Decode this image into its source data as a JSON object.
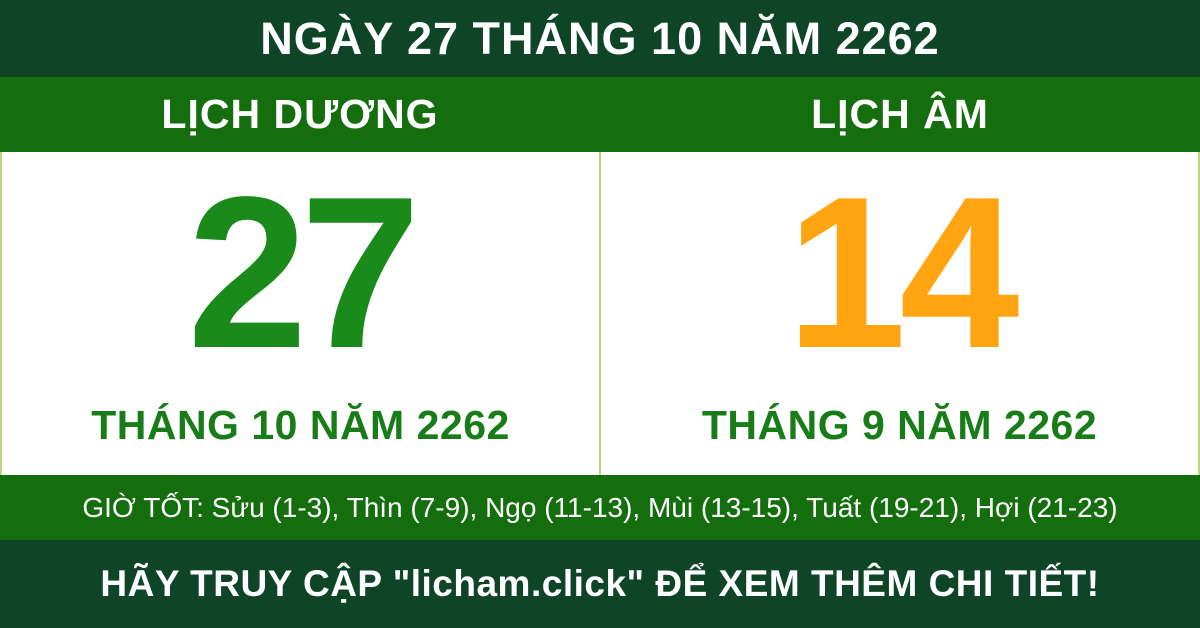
{
  "header": {
    "title": "NGÀY 27 THÁNG 10 NĂM 2262"
  },
  "columns": {
    "solar": {
      "header": "LỊCH DƯƠNG",
      "day": "27",
      "month_year": "THÁNG 10 NĂM 2262"
    },
    "lunar": {
      "header": "LỊCH ÂM",
      "day": "14",
      "month_year": "THÁNG 9 NĂM 2262"
    }
  },
  "good_hours": {
    "text": "GIỜ TỐT: Sửu (1-3), Thìn (7-9), Ngọ (11-13), Mùi (13-15), Tuất (19-21), Hợi (21-23)"
  },
  "footer": {
    "text": "HÃY TRUY CẬP \"licham.click\" ĐỂ XEM THÊM CHI TIẾT!"
  },
  "colors": {
    "dark_green": "#0e4527",
    "bar_green": "#156e0e",
    "day_green": "#1a8a1a",
    "month_green": "#187d18",
    "day_orange": "#ffa512",
    "divider_green": "#b3da7e",
    "text_white": "#ffffff"
  }
}
